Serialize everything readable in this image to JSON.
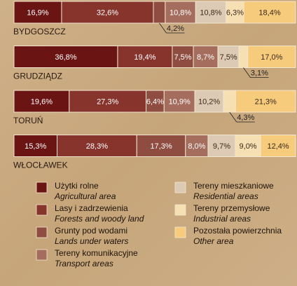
{
  "chart_data": {
    "type": "stacked-bar-horizontal",
    "categories": [
      "BYDGOSZCZ",
      "GRUDZIĄDZ",
      "TORUŃ",
      "WŁOCŁAWEK"
    ],
    "xlim": [
      0,
      100
    ],
    "series": [
      {
        "name": "Użytki rolne",
        "name_en": "Agricultural area",
        "color": "#6a1414",
        "values": [
          16.9,
          36.8,
          19.6,
          15.3
        ],
        "value_labels": [
          "16,9%",
          "36,8%",
          "19,6%",
          "15,3%"
        ]
      },
      {
        "name": "Lasy i zadrzewienia",
        "name_en": "Forests and woody land",
        "color": "#86342c",
        "values": [
          32.6,
          19.4,
          27.3,
          28.3
        ],
        "value_labels": [
          "32,6%",
          "19,4%",
          "27,3%",
          "28,3%"
        ]
      },
      {
        "name": "Grunty pod wodami",
        "name_en": "Lands under waters",
        "color": "#8f4c40",
        "values": [
          4.2,
          7.5,
          6.4,
          17.3
        ],
        "value_labels": [
          "4,2%",
          "7,5%",
          "6,4%",
          "17,3%"
        ]
      },
      {
        "name": "Tereny komunikacyjne",
        "name_en": "Transport areas",
        "color": "#a46d5d",
        "values": [
          10.8,
          8.7,
          10.9,
          8.0
        ],
        "value_labels": [
          "10,8%",
          "8,7%",
          "10,9%",
          "8,0%"
        ]
      },
      {
        "name": "Tereny mieszkaniowe",
        "name_en": "Residential areas",
        "color": "#dccab4",
        "values": [
          10.8,
          7.5,
          10.2,
          9.7
        ],
        "value_labels": [
          "10,8%",
          "7,5%",
          "10,2%",
          "9,7%"
        ]
      },
      {
        "name": "Tereny przemysłowe",
        "name_en": "Industrial areas",
        "color": "#f6dfb2",
        "values": [
          6.3,
          3.1,
          4.3,
          9.0
        ],
        "value_labels": [
          "6,3%",
          "3,1%",
          "4,3%",
          "9,0%"
        ]
      },
      {
        "name": "Pozostała powierzchnia",
        "name_en": "Other area",
        "color": "#f7cb7c",
        "values": [
          18.4,
          17.0,
          21.3,
          12.4
        ],
        "value_labels": [
          "18,4%",
          "17,0%",
          "21,3%",
          "12,4%"
        ]
      }
    ]
  }
}
